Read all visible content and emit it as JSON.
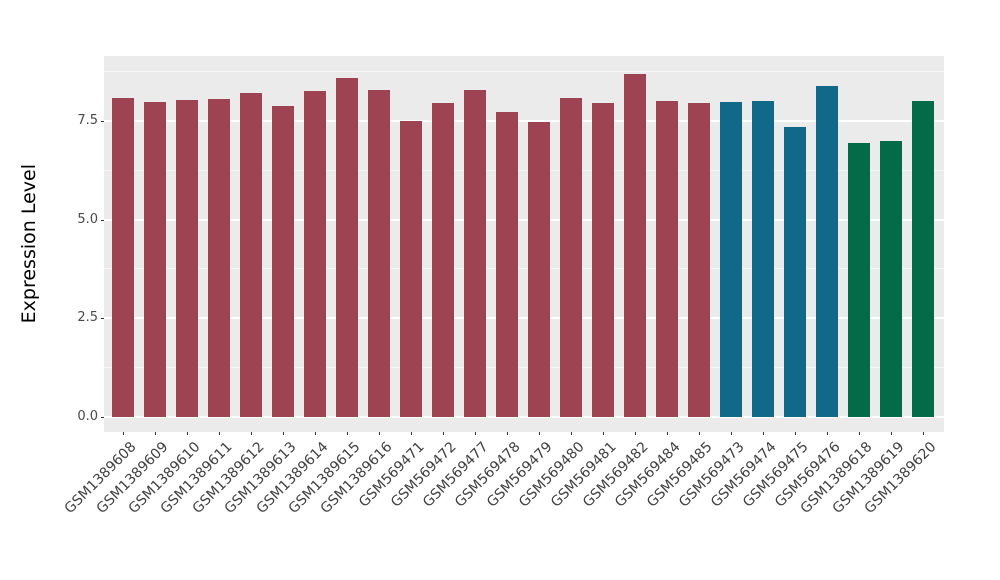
{
  "chart_data": {
    "type": "bar",
    "title": "",
    "xlabel": "",
    "ylabel": "Expression Level",
    "legend": "none",
    "panel_background_color": "#EBEBEB",
    "grid_color": "#FFFFFF",
    "grid": "on",
    "x_tick_angle_degrees": 45,
    "ylim": [
      -0.39,
      9.15
    ],
    "yticks": [
      0.0,
      2.5,
      5.0,
      7.5
    ],
    "ytick_labels": [
      "0.0",
      "2.5",
      "5.0",
      "7.5"
    ],
    "minor_yticks": [
      1.25,
      3.75,
      6.25,
      8.75
    ],
    "categories": [
      "GSM1389608",
      "GSM1389609",
      "GSM1389610",
      "GSM1389611",
      "GSM1389612",
      "GSM1389613",
      "GSM1389614",
      "GSM1389615",
      "GSM1389616",
      "GSM569471",
      "GSM569472",
      "GSM569477",
      "GSM569478",
      "GSM569479",
      "GSM569480",
      "GSM569481",
      "GSM569482",
      "GSM569484",
      "GSM569485",
      "GSM569473",
      "GSM569474",
      "GSM569475",
      "GSM569476",
      "GSM1389618",
      "GSM1389619",
      "GSM1389620"
    ],
    "values": [
      8.09,
      7.99,
      8.03,
      8.07,
      8.21,
      7.88,
      8.25,
      8.58,
      8.29,
      7.51,
      7.97,
      8.29,
      7.74,
      7.48,
      8.09,
      7.95,
      8.69,
      8.01,
      7.96,
      7.99,
      8.02,
      7.36,
      8.4,
      6.95,
      7.0,
      8.01
    ],
    "bar_groups": [
      0,
      0,
      0,
      0,
      0,
      0,
      0,
      0,
      0,
      0,
      0,
      0,
      0,
      0,
      0,
      0,
      0,
      0,
      0,
      1,
      1,
      1,
      1,
      2,
      2,
      2
    ],
    "group_colors": [
      "#9E4351",
      "#11698A",
      "#046B49"
    ]
  }
}
